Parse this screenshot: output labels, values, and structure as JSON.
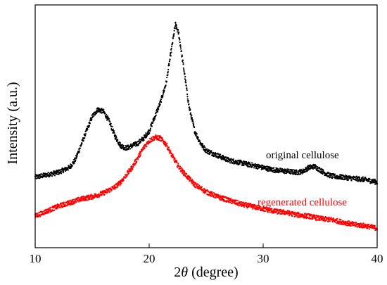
{
  "chart_data": {
    "type": "scatter",
    "title": "",
    "xlabel_prefix": "2",
    "xlabel_symbol": "θ",
    "xlabel_suffix": " (degree)",
    "ylabel": "Intensity (a.u.)",
    "xlim": [
      10,
      40
    ],
    "ylim": [
      0,
      100
    ],
    "xticks": [
      10,
      20,
      30,
      40
    ],
    "yticks_shown": false,
    "grid": false,
    "legend": "none",
    "series": [
      {
        "name": "original cellulose",
        "color": "#000000",
        "x": [
          10,
          11,
          12,
          13,
          13.5,
          14,
          14.5,
          15,
          15.5,
          16,
          16.5,
          17,
          17.5,
          18,
          18.5,
          19,
          19.5,
          20,
          20.5,
          21,
          21.5,
          22,
          22.3,
          22.6,
          23,
          23.5,
          24,
          24.5,
          25,
          26,
          27,
          28,
          29,
          30,
          31,
          32,
          33,
          33.5,
          34,
          34.5,
          35,
          35.5,
          36,
          37,
          38,
          39,
          40
        ],
        "y": [
          29,
          30,
          31,
          33,
          36,
          42,
          48,
          54,
          57,
          56,
          52,
          46,
          42,
          41,
          42,
          43,
          45,
          48,
          54,
          60,
          68,
          83,
          92,
          88,
          75,
          58,
          48,
          43,
          40,
          38,
          36,
          35,
          34,
          33,
          32,
          31.5,
          31,
          31.5,
          33,
          33.5,
          32,
          30.5,
          29.5,
          29,
          28.5,
          28,
          27
        ]
      },
      {
        "name": "regenerated cellulose",
        "color": "#ff0000",
        "x": [
          10,
          11,
          12,
          13,
          14,
          15,
          16,
          17,
          17.5,
          18,
          18.5,
          19,
          19.5,
          20,
          20.5,
          21,
          21.5,
          22,
          22.5,
          23,
          23.5,
          24,
          24.5,
          25,
          26,
          27,
          28,
          29,
          30,
          31,
          32,
          33,
          34,
          35,
          36,
          37,
          38,
          39,
          40
        ],
        "y": [
          13,
          15,
          17,
          18.5,
          20,
          21,
          22.5,
          25,
          27,
          30,
          33,
          37,
          41,
          44,
          45.5,
          45,
          42.5,
          38,
          34,
          31,
          28.5,
          26,
          24.5,
          23,
          21,
          19.5,
          18,
          17,
          16,
          15,
          14.5,
          13.5,
          13,
          12,
          11.5,
          10.5,
          9.5,
          9,
          8
        ]
      }
    ]
  }
}
